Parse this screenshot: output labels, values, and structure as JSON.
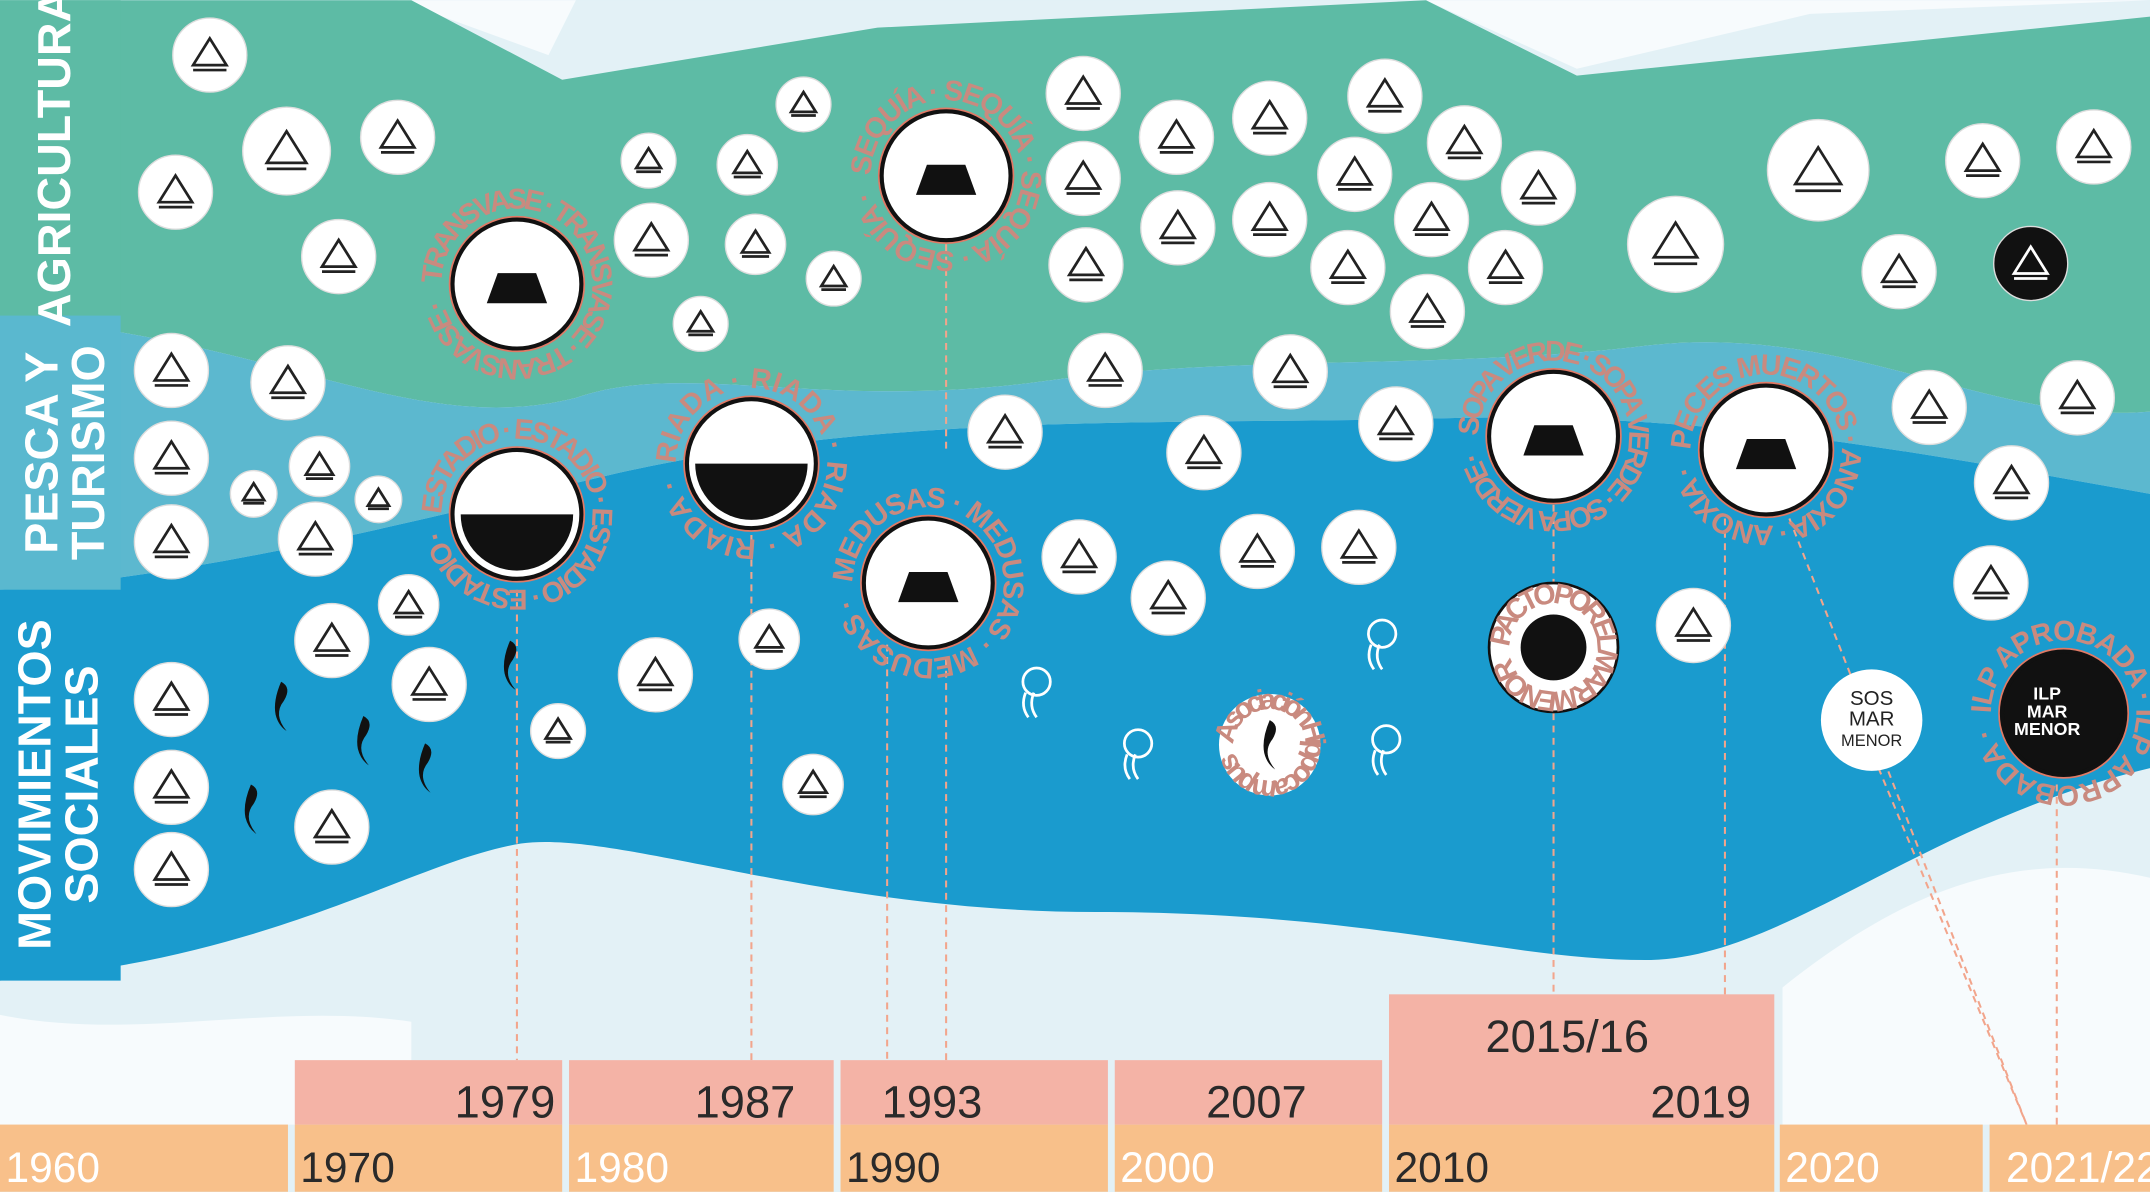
{
  "sections": [
    [
      "AGRICULTURA"
    ],
    [
      "PESCA Y",
      "TURISMO"
    ],
    [
      "MOVIMIENTOS",
      "SOCIALES"
    ]
  ],
  "events": [
    {
      "ring": "TRANSVASE · TRANSVASE · TRANSVASE ·"
    },
    {
      "ring": "ESTADIO · ESTADIO · ESTADIO · ESTADIO ·"
    },
    {
      "ring": "RIADA · RIADA · RIADA · RIADA ·"
    },
    {
      "ring": "SEQUÍA · SEQUÍA · SEQUÍA · SEQUÍA ·"
    },
    {
      "ring": "MEDUSAS · MEDUSAS · MEDUSAS ·"
    },
    {
      "ring": "SOPA VERDE · SOPA VERDE · SOPA VERDE ·"
    },
    {
      "ring": "PECES MUERTOS · ANOXIA · ANOXIA ·"
    },
    {
      "ring": "ILP APROBADA · ILP APROBADA ·"
    }
  ],
  "badges": {
    "pacto": "PACTO POR EL MAR MENOR",
    "asociacion": "Asociación Hippocampus",
    "sos": [
      "SOS",
      "MAR",
      "MENOR"
    ],
    "ilp": [
      "ILP",
      "MAR",
      "MENOR"
    ]
  },
  "timeline": {
    "decades": [
      "1960",
      "1970",
      "1980",
      "1990",
      "2000",
      "2010",
      "2020",
      "2021/22"
    ],
    "years": [
      "1979",
      "1987",
      "1993",
      "2007",
      "2015/16",
      "2019"
    ]
  }
}
